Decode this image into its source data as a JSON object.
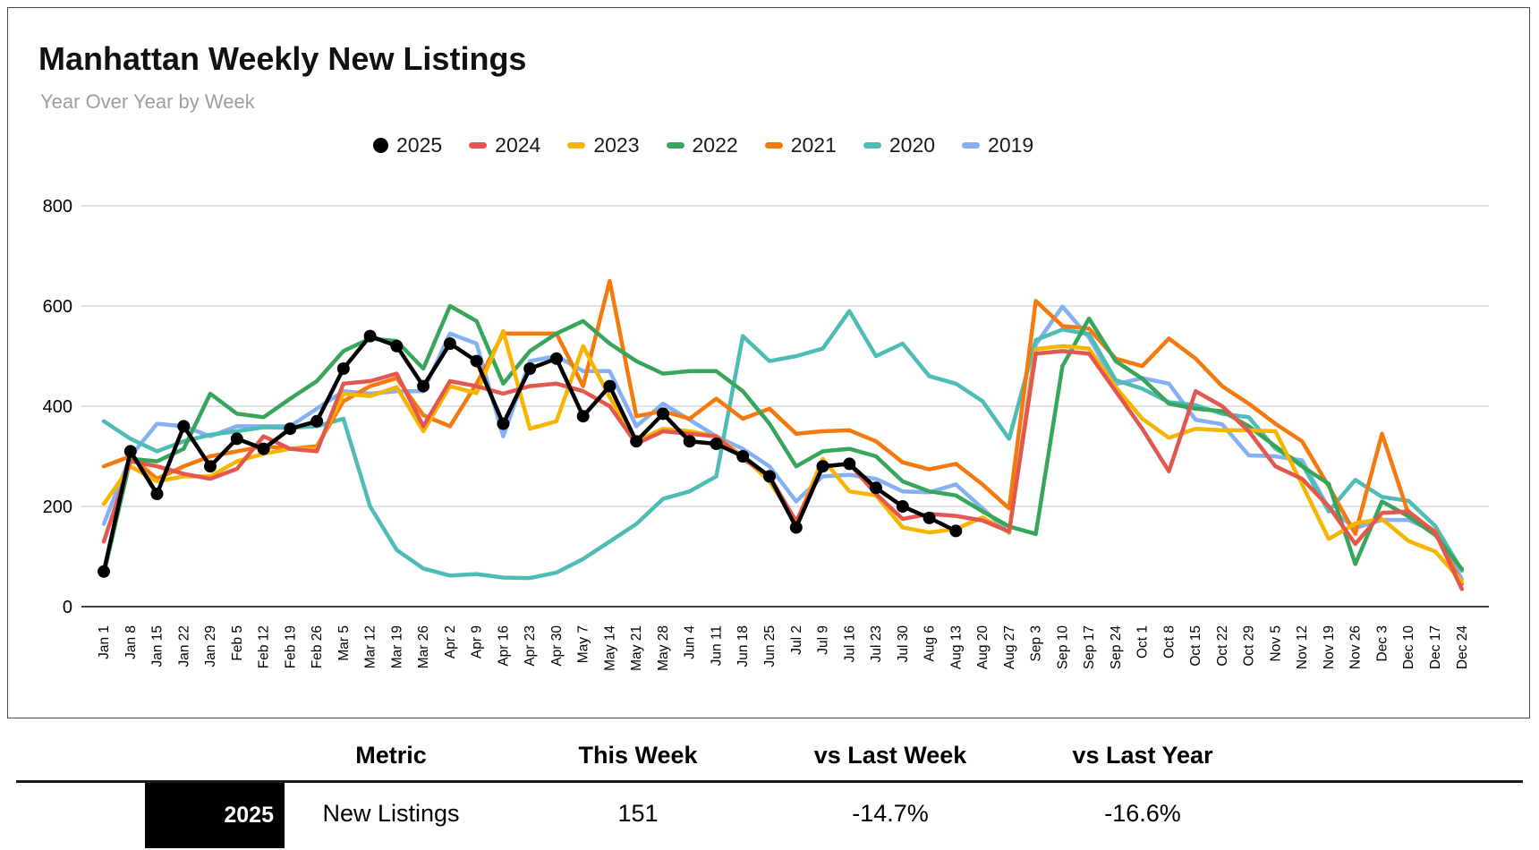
{
  "header": {
    "title": "Manhattan Weekly New Listings",
    "subtitle": "Year Over Year by Week"
  },
  "chart_data": {
    "type": "line",
    "title": "Manhattan Weekly New Listings",
    "xlabel": "",
    "ylabel": "",
    "ylim": [
      0,
      800
    ],
    "yticks": [
      0,
      200,
      400,
      600,
      800
    ],
    "grid": true,
    "legend_position": "top",
    "categories": [
      "Jan 1",
      "Jan 8",
      "Jan 15",
      "Jan 22",
      "Jan 29",
      "Feb 5",
      "Feb 12",
      "Feb 19",
      "Feb 26",
      "Mar 5",
      "Mar 12",
      "Mar 19",
      "Mar 26",
      "Apr 2",
      "Apr 9",
      "Apr 16",
      "Apr 23",
      "Apr 30",
      "May 7",
      "May 14",
      "May 21",
      "May 28",
      "Jun 4",
      "Jun 11",
      "Jun 18",
      "Jun 25",
      "Jul 2",
      "Jul 9",
      "Jul 16",
      "Jul 23",
      "Jul 30",
      "Aug 6",
      "Aug 13",
      "Aug 20",
      "Aug 27",
      "Sep 3",
      "Sep 10",
      "Sep 17",
      "Sep 24",
      "Oct 1",
      "Oct 8",
      "Oct 15",
      "Oct 22",
      "Oct 29",
      "Nov 5",
      "Nov 12",
      "Nov 19",
      "Nov 26",
      "Dec 3",
      "Dec 10",
      "Dec 17",
      "Dec 24"
    ],
    "series": [
      {
        "name": "2025",
        "color": "#000000",
        "marker": "circle",
        "values": [
          70,
          310,
          225,
          360,
          280,
          335,
          315,
          355,
          370,
          475,
          540,
          520,
          440,
          525,
          490,
          365,
          475,
          495,
          380,
          440,
          330,
          385,
          330,
          325,
          300,
          260,
          158,
          280,
          285,
          237,
          200,
          177,
          151
        ]
      },
      {
        "name": "2024",
        "color": "#e4574e",
        "values": [
          130,
          290,
          280,
          265,
          255,
          275,
          340,
          315,
          310,
          445,
          450,
          465,
          360,
          450,
          440,
          425,
          440,
          445,
          430,
          400,
          325,
          350,
          345,
          340,
          295,
          260,
          170,
          280,
          285,
          225,
          175,
          185,
          181,
          172,
          150,
          505,
          510,
          505,
          430,
          355,
          270,
          430,
          400,
          350,
          280,
          255,
          200,
          125,
          187,
          190,
          148,
          35
        ]
      },
      {
        "name": "2023",
        "color": "#f7b500",
        "values": [
          205,
          280,
          250,
          260,
          260,
          290,
          305,
          315,
          315,
          425,
          420,
          438,
          350,
          440,
          426,
          550,
          355,
          370,
          520,
          418,
          330,
          355,
          350,
          340,
          300,
          250,
          168,
          295,
          230,
          222,
          158,
          148,
          155,
          178,
          148,
          514,
          520,
          515,
          438,
          375,
          337,
          355,
          352,
          352,
          350,
          244,
          135,
          166,
          175,
          131,
          110,
          50
        ]
      },
      {
        "name": "2022",
        "color": "#38a65a",
        "values": [
          65,
          295,
          290,
          315,
          425,
          385,
          378,
          415,
          450,
          510,
          535,
          530,
          475,
          600,
          570,
          445,
          510,
          545,
          570,
          525,
          490,
          465,
          470,
          470,
          430,
          365,
          280,
          310,
          315,
          300,
          250,
          230,
          222,
          190,
          160,
          145,
          480,
          575,
          490,
          455,
          405,
          395,
          390,
          360,
          320,
          280,
          245,
          85,
          210,
          180,
          143,
          75
        ]
      },
      {
        "name": "2021",
        "color": "#f6790d",
        "values": [
          280,
          300,
          255,
          280,
          300,
          310,
          320,
          315,
          320,
          410,
          440,
          456,
          382,
          360,
          445,
          545,
          545,
          545,
          440,
          650,
          380,
          390,
          375,
          415,
          375,
          395,
          345,
          350,
          352,
          330,
          288,
          274,
          285,
          244,
          196,
          610,
          560,
          555,
          495,
          480,
          535,
          495,
          440,
          405,
          365,
          330,
          240,
          145,
          345,
          185,
          150,
          45
        ]
      },
      {
        "name": "2020",
        "color": "#4cbcb4",
        "values": [
          370,
          335,
          310,
          330,
          343,
          350,
          358,
          357,
          360,
          375,
          200,
          113,
          76,
          62,
          65,
          58,
          57,
          68,
          95,
          130,
          165,
          215,
          230,
          260,
          540,
          490,
          500,
          515,
          590,
          500,
          525,
          460,
          445,
          410,
          335,
          532,
          553,
          544,
          452,
          435,
          408,
          402,
          385,
          378,
          315,
          285,
          190,
          253,
          219,
          211,
          161,
          72
        ]
      },
      {
        "name": "2019",
        "color": "#84b0f4",
        "values": [
          165,
          300,
          365,
          360,
          340,
          360,
          360,
          360,
          395,
          430,
          425,
          430,
          430,
          545,
          525,
          340,
          490,
          500,
          470,
          470,
          360,
          405,
          373,
          340,
          315,
          280,
          210,
          260,
          263,
          255,
          230,
          228,
          244,
          196,
          147,
          523,
          599,
          537,
          444,
          456,
          445,
          373,
          364,
          302,
          300,
          292,
          196,
          157,
          173,
          173,
          149,
          55
        ]
      }
    ]
  },
  "table": {
    "columns": [
      "Metric",
      "This Week",
      "vs Last Week",
      "vs Last Year"
    ],
    "row": {
      "year": "2025",
      "badge_color": "#000000",
      "metric": "New Listings",
      "this_week": "151",
      "vs_last_week": "-14.7%",
      "vs_last_year": "-16.6%"
    }
  }
}
